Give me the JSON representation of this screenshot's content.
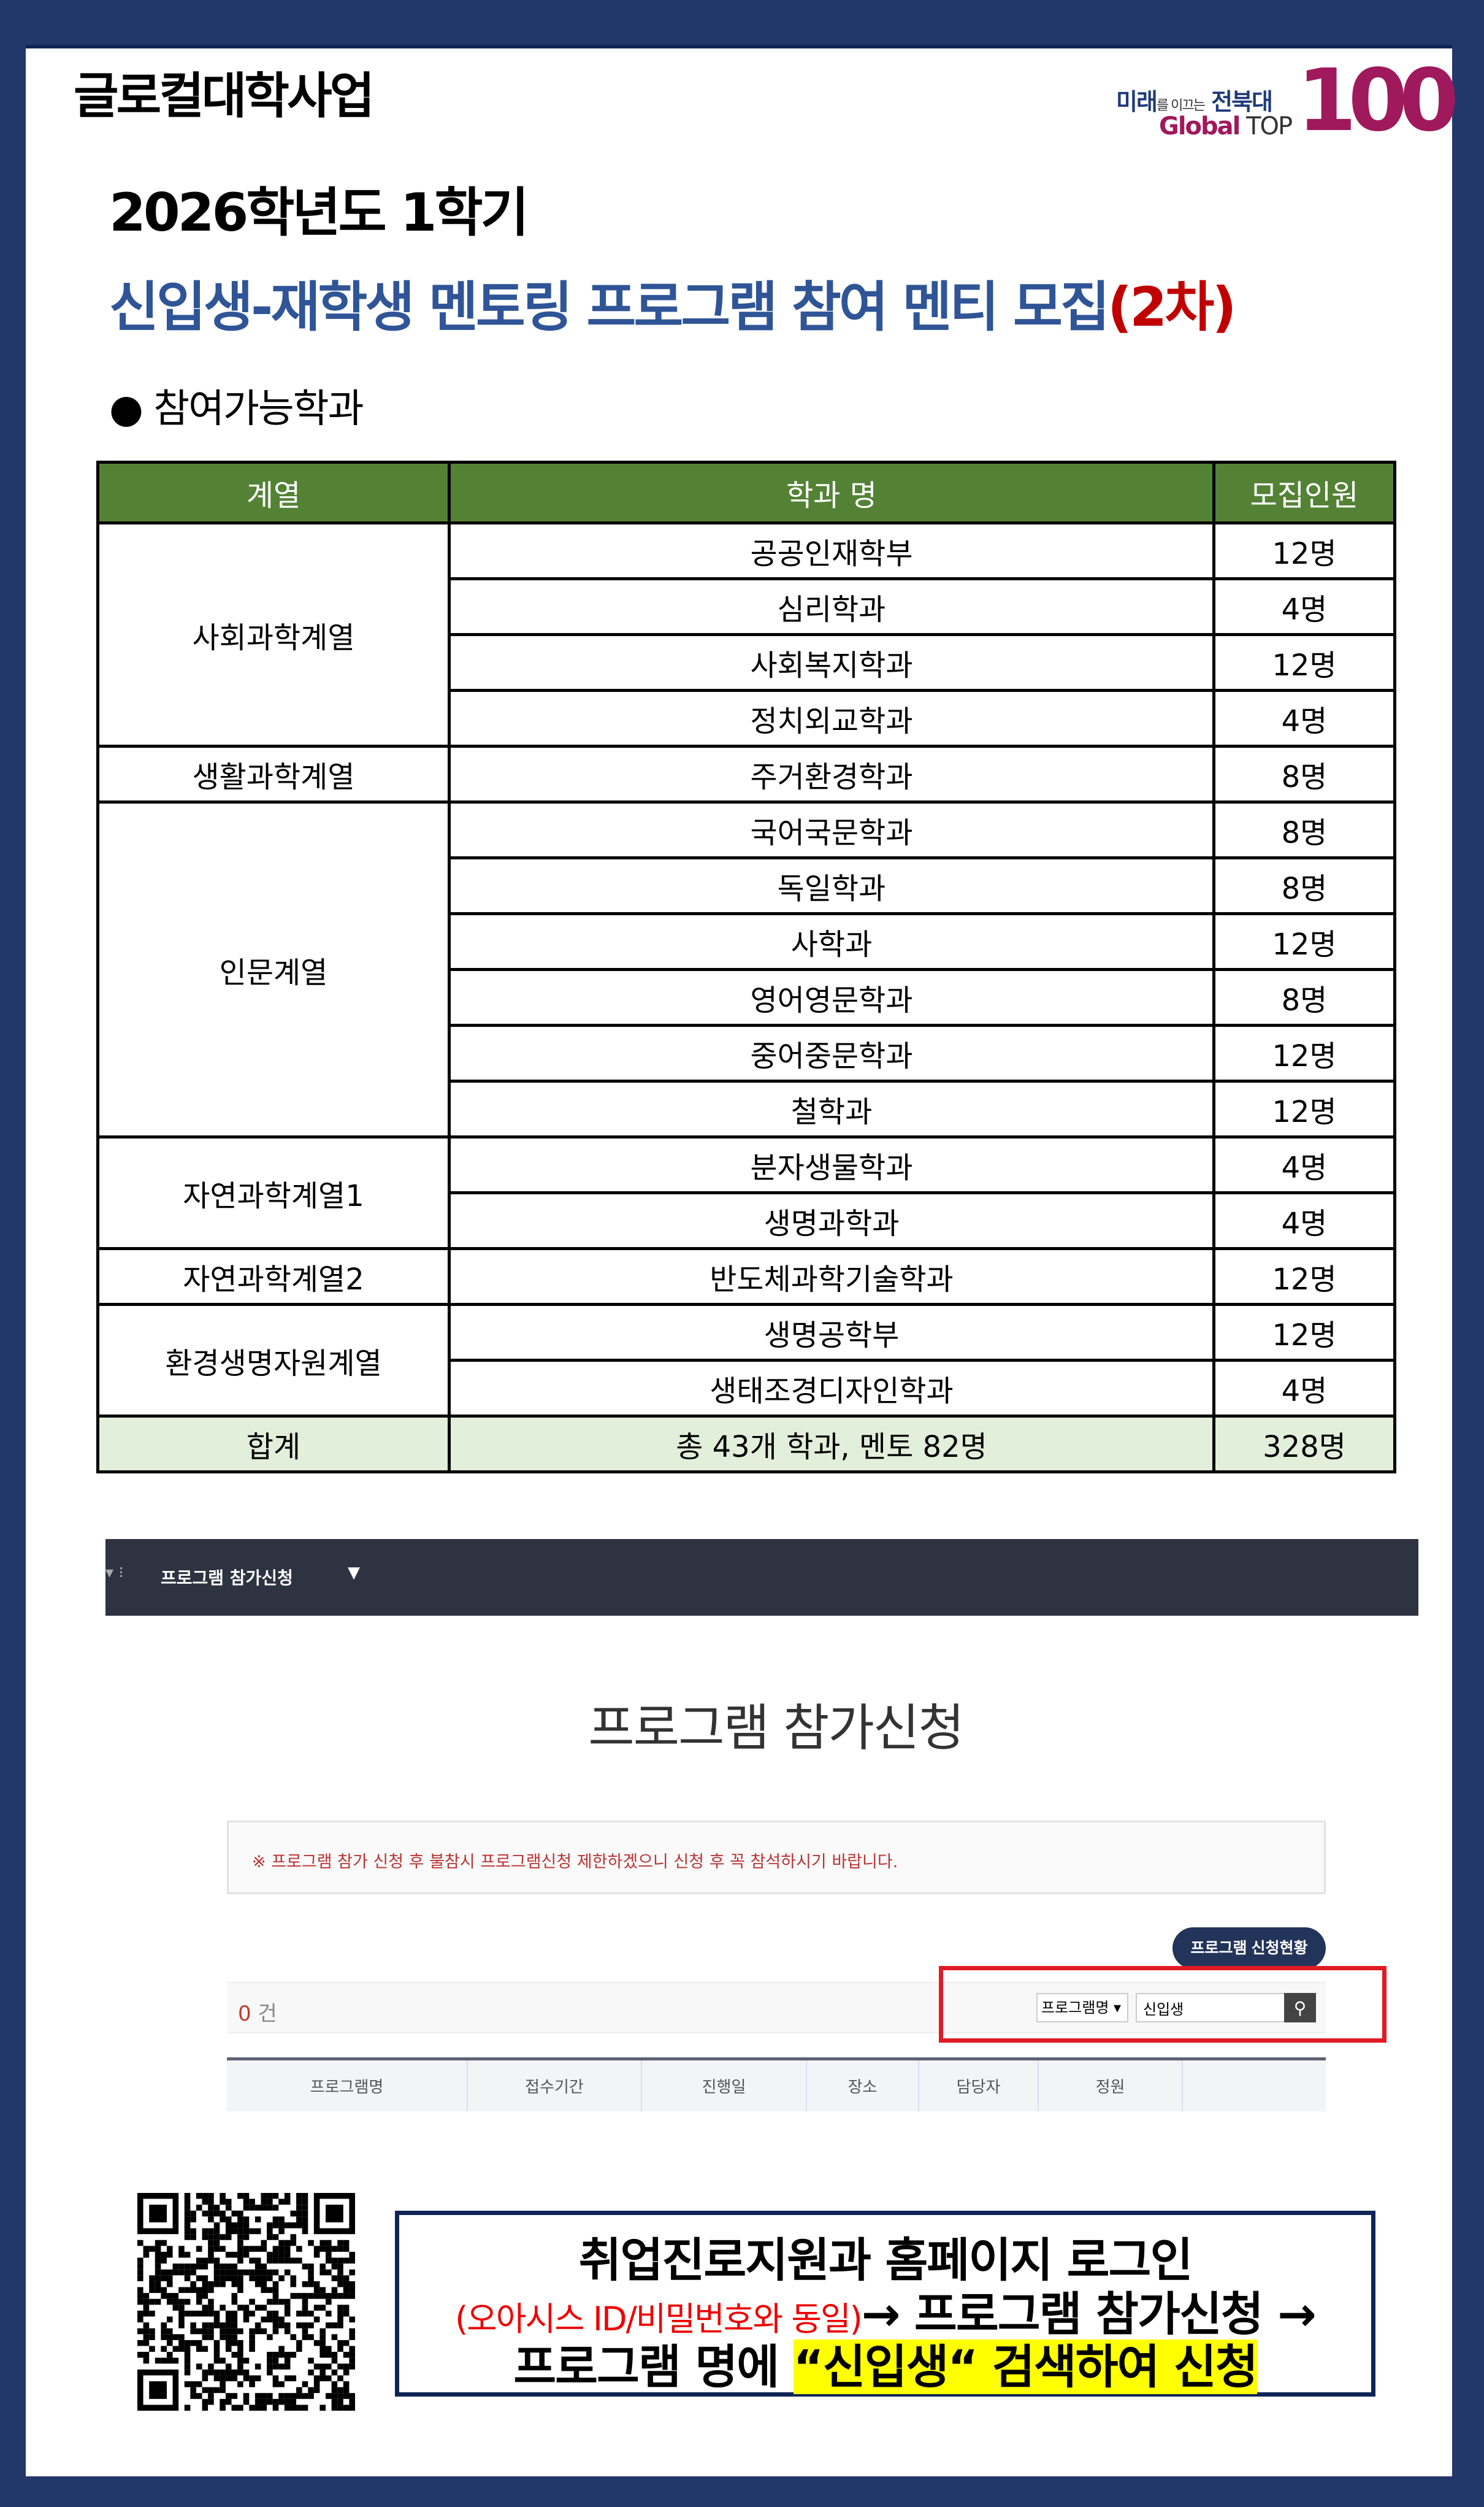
{
  "header": {
    "brand": "글로컬대학사업",
    "logo": {
      "line1_a": "미래",
      "line1_b": "를 이끄는",
      "line1_c": "전북대",
      "line2_a": "Global",
      "line2_b": " TOP",
      "big": "100"
    }
  },
  "term": "2026학년도 1학기",
  "headline": {
    "main": "신입생-재학생 멘토링 프로그램 참여 멘티 모집",
    "round": "(2차)"
  },
  "section_title": "● 참여가능학과",
  "dept_table": {
    "headers": [
      "계열",
      "학과 명",
      "모집인원"
    ],
    "groups": [
      {
        "field": "사회과학계열",
        "rows": [
          [
            "공공인재학부",
            "12명"
          ],
          [
            "심리학과",
            "4명"
          ],
          [
            "사회복지학과",
            "12명"
          ],
          [
            "정치외교학과",
            "4명"
          ]
        ]
      },
      {
        "field": "생활과학계열",
        "rows": [
          [
            "주거환경학과",
            "8명"
          ]
        ]
      },
      {
        "field": "인문계열",
        "rows": [
          [
            "국어국문학과",
            "8명"
          ],
          [
            "독일학과",
            "8명"
          ],
          [
            "사학과",
            "12명"
          ],
          [
            "영어영문학과",
            "8명"
          ],
          [
            "중어중문학과",
            "12명"
          ],
          [
            "철학과",
            "12명"
          ]
        ]
      },
      {
        "field": "자연과학계열1",
        "rows": [
          [
            "분자생물학과",
            "4명"
          ],
          [
            "생명과학과",
            "4명"
          ]
        ]
      },
      {
        "field": "자연과학계열2",
        "rows": [
          [
            "반도체과학기술학과",
            "12명"
          ]
        ]
      },
      {
        "field": "환경생명자원계열",
        "rows": [
          [
            "생명공학부",
            "12명"
          ],
          [
            "생태조경디자인학과",
            "4명"
          ]
        ]
      }
    ],
    "total": [
      "합계",
      "총 43개 학과, 멘토 82명",
      "328명"
    ],
    "colors": {
      "header": "#548235",
      "total": "#e2efda"
    }
  },
  "screenshot": {
    "nav_crumb": "프로그램 참가신청",
    "title": "프로그램 참가신청",
    "notice": "※ 프로그램 참가 신청 후 불참시 프로그램신청 제한하겠으니 신청 후 꼭 참석하시기 바랍니다.",
    "status_button": "프로그램 신청현황",
    "count": "0",
    "count_unit": " 건",
    "search_select": "프로그램명",
    "search_value": "신입생",
    "columns": [
      "프로그램명",
      "접수기간",
      "진행일",
      "장소",
      "담당자",
      "정원",
      ""
    ]
  },
  "instructions": {
    "line1": "취업진로지원과 홈페이지 로그인",
    "line2_note": "(오아시스 ID/비밀번호와 동일)",
    "line2_rest": "→ 프로그램 참가신청 →",
    "line3_a": "프로그램 명에 ",
    "line3_hl": "“신입생“ 검색하여 신청"
  }
}
